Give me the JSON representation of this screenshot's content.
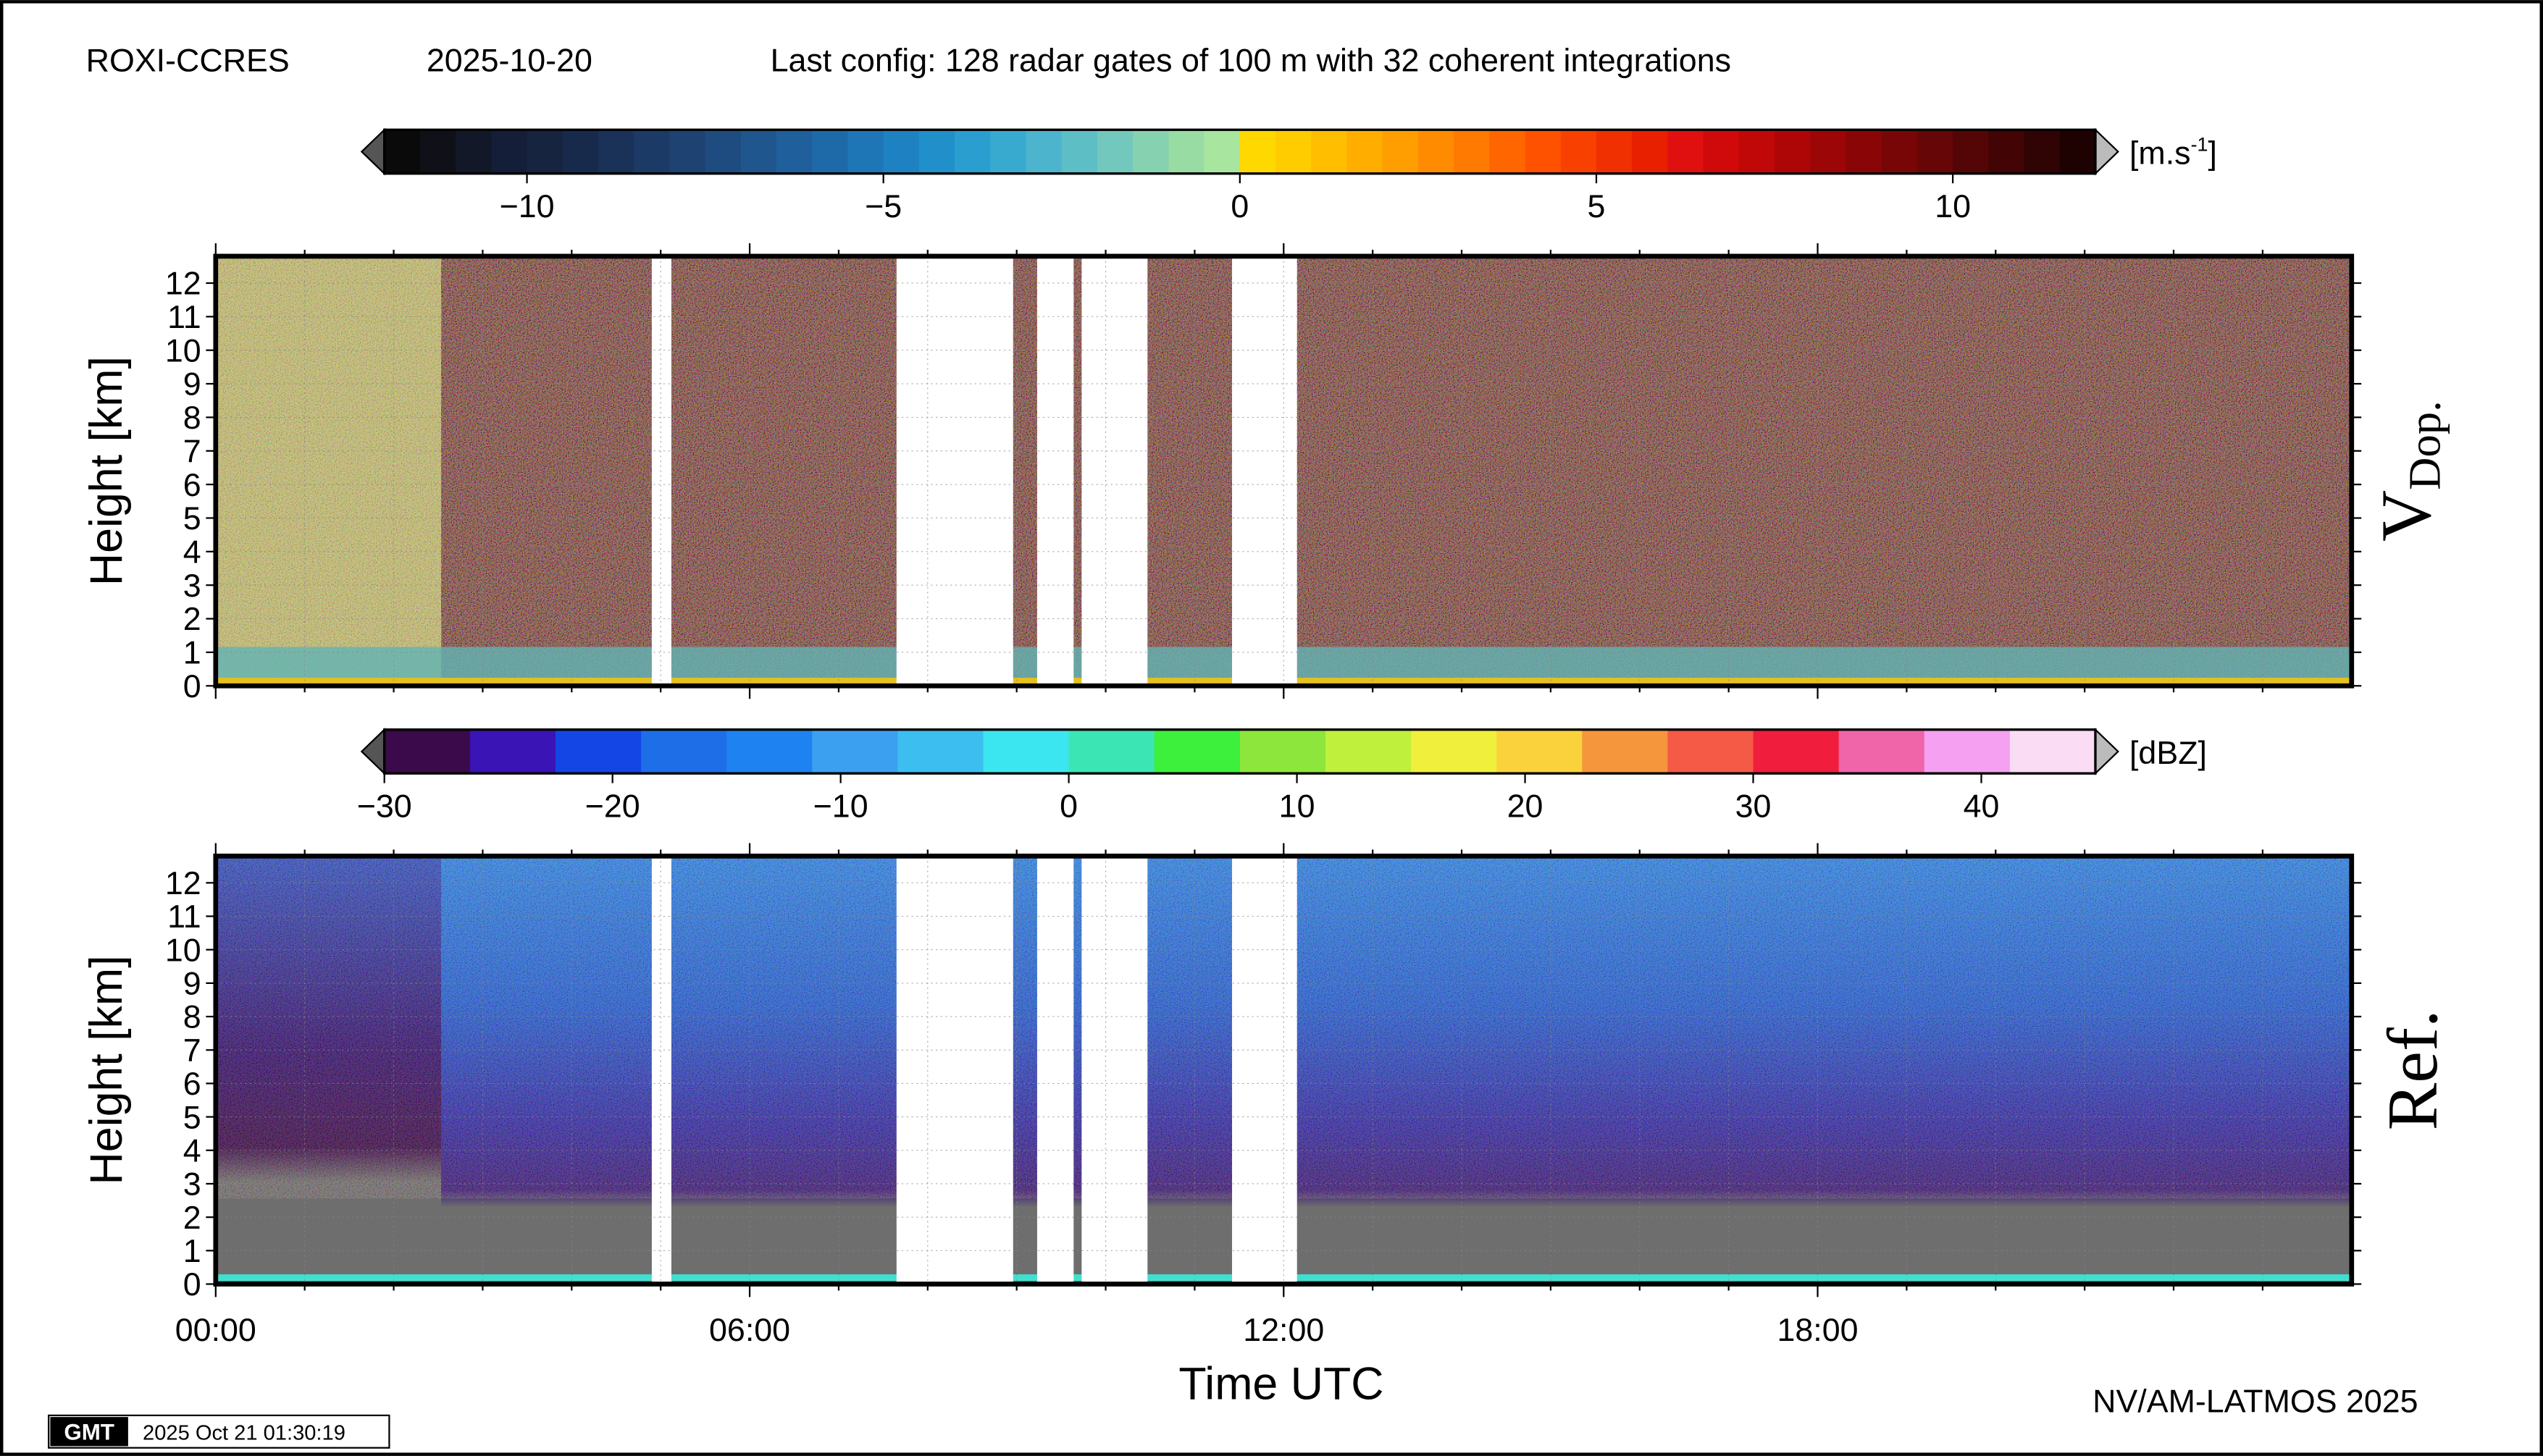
{
  "header": {
    "station": "ROXI-CCRES",
    "date": "2025-10-20",
    "config": "Last config: 128 radar gates of 100 m with 32 coherent integrations"
  },
  "footer": {
    "credit": "NV/AM-LATMOS 2025",
    "stamp_logo": "GMT",
    "timestamp": "2025 Oct 21 01:30:19"
  },
  "time_axis": {
    "xlabel": "Time UTC",
    "xlim": [
      0,
      24
    ],
    "xticks": [
      {
        "value": 0,
        "label": "00:00"
      },
      {
        "value": 6,
        "label": "06:00"
      },
      {
        "value": 12,
        "label": "12:00"
      },
      {
        "value": 18,
        "label": "18:00"
      }
    ],
    "xminorticks": [
      1,
      2,
      3,
      4,
      5,
      7,
      8,
      9,
      10,
      11,
      13,
      14,
      15,
      16,
      17,
      19,
      20,
      21,
      22,
      23
    ]
  },
  "data_gaps": [
    [
      4.9,
      5.12
    ],
    [
      7.65,
      8.96
    ],
    [
      9.23,
      9.64
    ],
    [
      9.73,
      10.47
    ],
    [
      11.42,
      12.15
    ]
  ],
  "chart_data": [
    {
      "type": "heatmap",
      "label": {
        "main": "V",
        "sub": "Dop."
      },
      "ylabel": "Height [km]",
      "ylim": [
        0,
        12.8
      ],
      "yticks": [
        0,
        1,
        2,
        3,
        4,
        5,
        6,
        7,
        8,
        9,
        10,
        11,
        12
      ],
      "grid": true,
      "colorbar": {
        "unit": {
          "main": "[m.s",
          "sup": "-1",
          "end": "]"
        },
        "lim": [
          -12,
          12
        ],
        "ticks": [
          {
            "value": -10,
            "label": "−10"
          },
          {
            "value": -5,
            "label": "−5"
          },
          0,
          5,
          10
        ],
        "colors": [
          "#0a0a0a",
          "#101018",
          "#121828",
          "#141e38",
          "#162440",
          "#182a4c",
          "#1a3258",
          "#1c3a66",
          "#1e4272",
          "#1f4c80",
          "#1f568e",
          "#1f609c",
          "#1e6aa8",
          "#1e76b6",
          "#1e82c2",
          "#2190ca",
          "#2a9ecf",
          "#38aacf",
          "#4cb4cc",
          "#5ebec6",
          "#72c8bc",
          "#86d2b0",
          "#98dca4",
          "#a8e6a0",
          "#ffd800",
          "#ffcc00",
          "#ffbe00",
          "#ffae00",
          "#ff9e00",
          "#ff8c00",
          "#ff7a00",
          "#ff6600",
          "#ff5200",
          "#f84000",
          "#f03000",
          "#e82000",
          "#e01010",
          "#d00a0a",
          "#c00808",
          "#ae0606",
          "#9c0606",
          "#8a0606",
          "#780606",
          "#660606",
          "#540606",
          "#420404",
          "#300404",
          "#1e0202"
        ]
      }
    },
    {
      "type": "heatmap",
      "label": {
        "main": "Ref."
      },
      "ylabel": "Height [km]",
      "ylim": [
        0,
        12.8
      ],
      "yticks": [
        0,
        1,
        2,
        3,
        4,
        5,
        6,
        7,
        8,
        9,
        10,
        11,
        12
      ],
      "grid": true,
      "colorbar": {
        "unit": {
          "main": "[dBZ]"
        },
        "lim": [
          -30,
          45
        ],
        "ticks": [
          {
            "value": -30,
            "label": "−30"
          },
          {
            "value": -20,
            "label": "−20"
          },
          {
            "value": -10,
            "label": "−10"
          },
          0,
          10,
          20,
          30,
          40
        ],
        "colors": [
          "#3a0a4a",
          "#3a14b4",
          "#1446e6",
          "#1e6ee8",
          "#1e82f0",
          "#3ca0f0",
          "#3cbef0",
          "#3ce6f0",
          "#3ce6b4",
          "#3cf03c",
          "#8ce63c",
          "#bef03c",
          "#f0f03c",
          "#fad23c",
          "#f5963c",
          "#f55a46",
          "#f01e3c",
          "#f064aa",
          "#f5a0f0",
          "#fadcf5"
        ]
      }
    }
  ]
}
